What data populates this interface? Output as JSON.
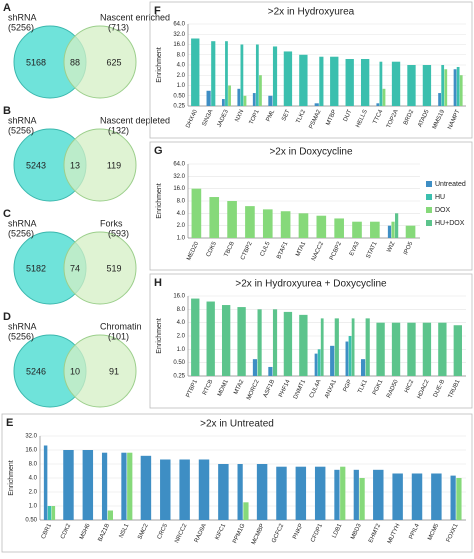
{
  "chart_data": [
    {
      "type": "venn",
      "panel": "A",
      "sets": [
        {
          "name": "shRNA",
          "size": "(5256)"
        },
        {
          "name": "Nascent enriched",
          "size": "(713)"
        }
      ],
      "counts": [
        5168,
        88,
        625
      ]
    },
    {
      "type": "venn",
      "panel": "B",
      "sets": [
        {
          "name": "shRNA",
          "size": "(5256)"
        },
        {
          "name": "Nascent depleted",
          "size": "(132)"
        }
      ],
      "counts": [
        5243,
        13,
        119
      ]
    },
    {
      "type": "venn",
      "panel": "C",
      "sets": [
        {
          "name": "shRNA",
          "size": "(5256)"
        },
        {
          "name": "Forks",
          "size": "(593)"
        }
      ],
      "counts": [
        5182,
        74,
        519
      ]
    },
    {
      "type": "venn",
      "panel": "D",
      "sets": [
        {
          "name": "shRNA",
          "size": "(5256)"
        },
        {
          "name": "Chromatin",
          "size": "(101)"
        }
      ],
      "counts": [
        5246,
        10,
        91
      ]
    },
    {
      "type": "bar",
      "panel": "F",
      "title": ">2x in Hydroxyurea",
      "y_label": "Enrichment",
      "log": true,
      "grid": true,
      "categories": [
        "DHX40",
        "SIN3A",
        "JADE3",
        "NXN",
        "TOP1",
        "PML",
        "SET",
        "TLK2",
        "PSMA2",
        "MTBP",
        "DUT",
        "HELLS",
        "TTC4",
        "TOP2A",
        "BRD2",
        "ATAD5",
        "MMS19",
        "NAMPT"
      ],
      "series": [
        {
          "name": "Untreated",
          "color": "#3e8ec4",
          "values": [
            null,
            0.7,
            0.4,
            0.8,
            0.6,
            0.5,
            null,
            null,
            0.3,
            null,
            null,
            null,
            0.3,
            null,
            null,
            null,
            0.6,
            3
          ]
        },
        {
          "name": "HU",
          "color": "#3bbfae",
          "values": [
            24,
            20,
            20,
            16,
            16,
            14,
            10,
            8,
            7,
            7,
            6,
            6,
            5,
            5,
            4,
            4,
            4,
            3.5
          ]
        },
        {
          "name": "DOX",
          "color": "#86d97a",
          "values": [
            null,
            null,
            1.0,
            0.5,
            2,
            null,
            null,
            null,
            null,
            null,
            null,
            null,
            0.8,
            null,
            null,
            null,
            3,
            2
          ]
        },
        {
          "name": "HU+DOX",
          "color": "#5cc48c",
          "values": [
            null,
            null,
            null,
            null,
            null,
            null,
            null,
            null,
            null,
            null,
            null,
            null,
            null,
            null,
            null,
            null,
            null,
            null
          ]
        }
      ],
      "ylim": [
        0.25,
        64
      ],
      "yticks": [
        {
          "value": 0.25,
          "label": "0.25"
        },
        {
          "value": 0.5,
          "label": "0.50"
        },
        {
          "value": 1,
          "label": "1.0"
        },
        {
          "value": 2,
          "label": "2.0"
        },
        {
          "value": 4,
          "label": "4.0"
        },
        {
          "value": 8,
          "label": "8.0"
        },
        {
          "value": 16,
          "label": "16.0"
        },
        {
          "value": 32,
          "label": "32.0"
        },
        {
          "value": 64,
          "label": "64.0"
        }
      ]
    },
    {
      "type": "bar",
      "panel": "G",
      "title": ">2x in Doxycycline",
      "y_label": "Enrichment",
      "log": true,
      "grid": true,
      "legend": "right",
      "categories": [
        "MED20",
        "CDK5",
        "TBCB",
        "CTBP2",
        "CUL5",
        "BTAF1",
        "MTA1",
        "NACC2",
        "PCBP2",
        "EYA3",
        "STAT1",
        "WIZ",
        "IPO5"
      ],
      "series": [
        {
          "name": "Untreated",
          "color": "#3e8ec4",
          "values": [
            null,
            null,
            null,
            null,
            null,
            null,
            null,
            null,
            null,
            null,
            null,
            2,
            null
          ]
        },
        {
          "name": "HU",
          "color": "#3bbfae",
          "values": [
            null,
            null,
            null,
            null,
            null,
            null,
            null,
            null,
            null,
            null,
            null,
            null,
            null
          ]
        },
        {
          "name": "DOX",
          "color": "#86d97a",
          "values": [
            16,
            10,
            8,
            6,
            5,
            4.5,
            4,
            3.5,
            3,
            2.5,
            2.5,
            2.5,
            2
          ]
        },
        {
          "name": "HU+DOX",
          "color": "#5cc48c",
          "values": [
            null,
            null,
            null,
            null,
            null,
            null,
            null,
            null,
            null,
            null,
            null,
            4,
            null
          ]
        }
      ],
      "ylim": [
        1,
        64
      ],
      "yticks": [
        {
          "value": 1,
          "label": "1.0"
        },
        {
          "value": 2,
          "label": "2.0"
        },
        {
          "value": 4,
          "label": "4.0"
        },
        {
          "value": 8,
          "label": "8.0"
        },
        {
          "value": 16,
          "label": "16.0"
        },
        {
          "value": 32,
          "label": "32.0"
        },
        {
          "value": 64,
          "label": "64.0"
        }
      ]
    },
    {
      "type": "bar",
      "panel": "H",
      "title": ">2x in Hydroxyurea + Doxycycline",
      "y_label": "Enrichment",
      "log": true,
      "grid": true,
      "categories": [
        "PTBP1",
        "RTCB",
        "MDM1",
        "MTA2",
        "MORC2",
        "ASF1B",
        "PHF14",
        "DNMT1",
        "CUL4A",
        "ANXA1",
        "PGP",
        "TLK1",
        "PGK1",
        "RAD50",
        "HIC2",
        "HDAC2",
        "DUE-B",
        "TRUB1"
      ],
      "series": [
        {
          "name": "Untreated",
          "color": "#3e8ec4",
          "values": [
            null,
            null,
            null,
            null,
            0.6,
            0.4,
            null,
            null,
            0.8,
            1.2,
            1.5,
            0.6,
            null,
            null,
            null,
            null,
            null,
            null
          ]
        },
        {
          "name": "HU",
          "color": "#3bbfae",
          "values": [
            null,
            null,
            null,
            null,
            null,
            null,
            null,
            null,
            1,
            null,
            2,
            null,
            null,
            null,
            null,
            null,
            null,
            null
          ]
        },
        {
          "name": "DOX",
          "color": "#86d97a",
          "values": [
            null,
            null,
            null,
            null,
            null,
            null,
            null,
            null,
            null,
            null,
            null,
            null,
            null,
            null,
            null,
            null,
            null,
            null
          ]
        },
        {
          "name": "HU+DOX",
          "color": "#5cc48c",
          "values": [
            14,
            12,
            10,
            9,
            8,
            8,
            7,
            6,
            5,
            5,
            5,
            5,
            4,
            4,
            4,
            4,
            4,
            3.5
          ]
        }
      ],
      "ylim": [
        0.25,
        16
      ],
      "yticks": [
        {
          "value": 0.25,
          "label": "0.25"
        },
        {
          "value": 0.5,
          "label": "0.50"
        },
        {
          "value": 1,
          "label": "1.0"
        },
        {
          "value": 2,
          "label": "2.0"
        },
        {
          "value": 4,
          "label": "4.0"
        },
        {
          "value": 8,
          "label": "8.0"
        },
        {
          "value": 16,
          "label": "16.0"
        }
      ]
    },
    {
      "type": "bar",
      "panel": "E",
      "title": ">2x in Untreated",
      "y_label": "Enrichment",
      "log": true,
      "grid": true,
      "categories": [
        "CBR1",
        "CDK2",
        "MSH6",
        "BAZ1B",
        "NSL1",
        "SMC2",
        "CRC5",
        "NRCC2",
        "RAD9A",
        "KIFC1",
        "PPM1G",
        "MCMBP",
        "GCFC2",
        "PNKP",
        "CFDP1",
        "LDB1",
        "MBD3",
        "EHMT2",
        "MUTYH",
        "PPIL4",
        "MCM5",
        "FOXK1"
      ],
      "series": [
        {
          "name": "Untreated",
          "color": "#3e8ec4",
          "values": [
            20,
            16,
            16,
            14,
            14,
            12,
            10,
            10,
            10,
            8,
            8,
            8,
            7,
            7,
            7,
            6,
            6,
            6,
            5,
            5,
            5,
            4.5
          ]
        },
        {
          "name": "HU",
          "color": "#3bbfae",
          "values": [
            1.0,
            null,
            null,
            null,
            null,
            null,
            null,
            null,
            null,
            null,
            null,
            null,
            null,
            null,
            null,
            null,
            null,
            null,
            null,
            null,
            null,
            null
          ]
        },
        {
          "name": "DOX",
          "color": "#86d97a",
          "values": [
            1.0,
            null,
            null,
            0.8,
            14,
            null,
            null,
            null,
            null,
            null,
            1.2,
            null,
            null,
            null,
            null,
            7,
            4,
            null,
            null,
            null,
            null,
            4
          ]
        },
        {
          "name": "HU+DOX",
          "color": "#5cc48c",
          "values": [
            null,
            null,
            null,
            null,
            null,
            null,
            null,
            null,
            null,
            null,
            null,
            null,
            null,
            null,
            null,
            null,
            null,
            null,
            null,
            null,
            null,
            null
          ]
        }
      ],
      "ylim": [
        0.5,
        32
      ],
      "yticks": [
        {
          "value": 0.5,
          "label": "0.50"
        },
        {
          "value": 1,
          "label": "1.0"
        },
        {
          "value": 2,
          "label": "2.0"
        },
        {
          "value": 4,
          "label": "4.0"
        },
        {
          "value": 8,
          "label": "8.0"
        },
        {
          "value": 16,
          "label": "16.0"
        },
        {
          "value": 32,
          "label": "32.0"
        }
      ]
    }
  ]
}
